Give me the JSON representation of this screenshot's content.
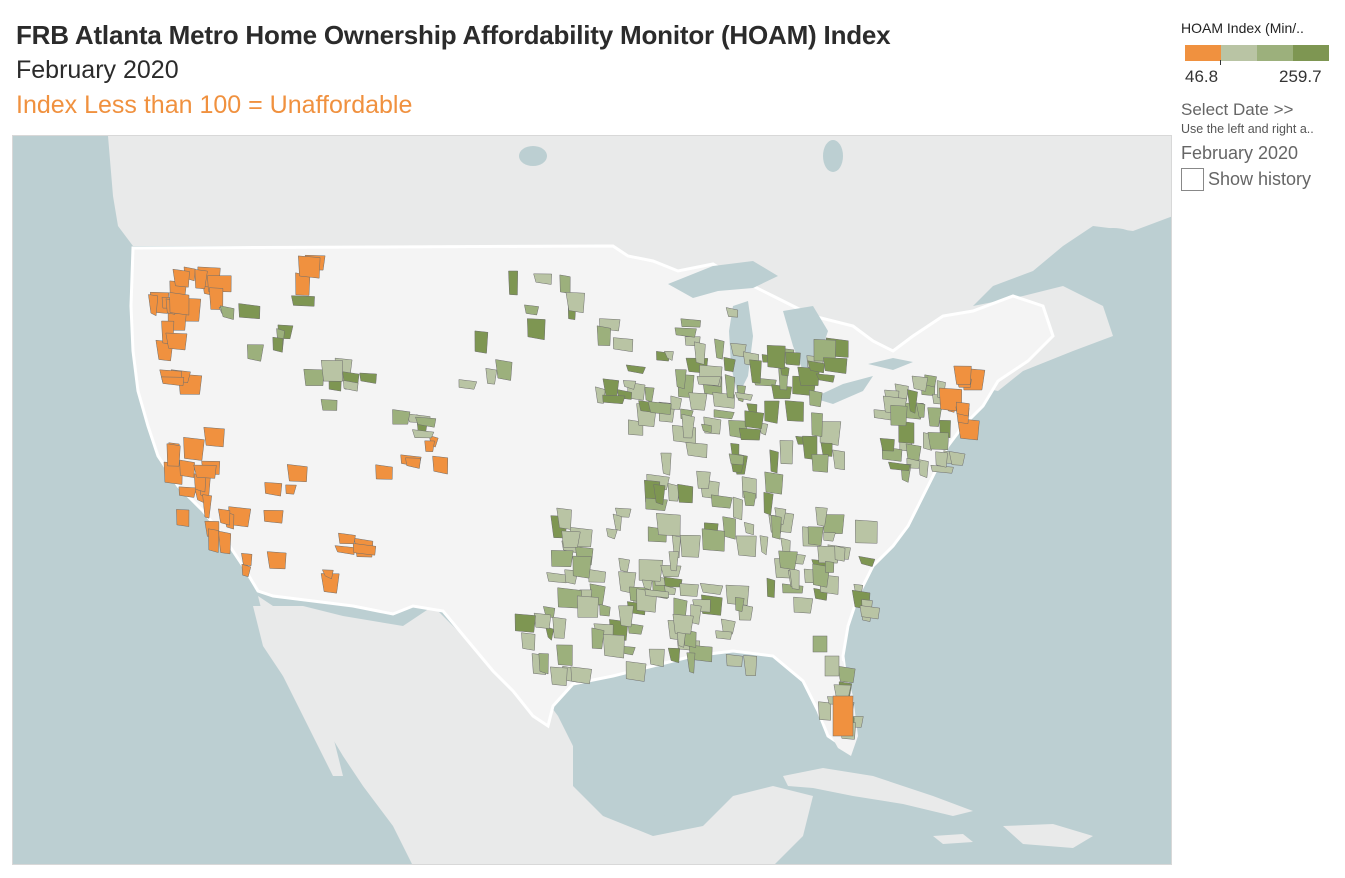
{
  "header": {
    "title": "FRB Atlanta Metro Home Ownership Affordability Monitor (HOAM) Index",
    "date": "February 2020",
    "note": "Index Less than 100 = Unaffordable"
  },
  "legend": {
    "title": "HOAM Index (Min/..",
    "min": "46.8",
    "max": "259.7",
    "colors": [
      "#f0913f",
      "#b9c4a4",
      "#9cb07c",
      "#7e9652"
    ]
  },
  "controls": {
    "select_date_label": "Select Date >>",
    "select_date_hint": "Use the left and right a..",
    "date_value": "February 2020",
    "show_history_label": "Show history",
    "show_history_checked": false
  },
  "map": {
    "colors": {
      "water": "#bccfd2",
      "land": "#e9eaea",
      "us_land": "#f4f4f4",
      "unaffordable": "#f0913f",
      "affordable_light": "#b9c4a4",
      "affordable_mid": "#9cb07c",
      "affordable_dark": "#7e9652"
    }
  }
}
